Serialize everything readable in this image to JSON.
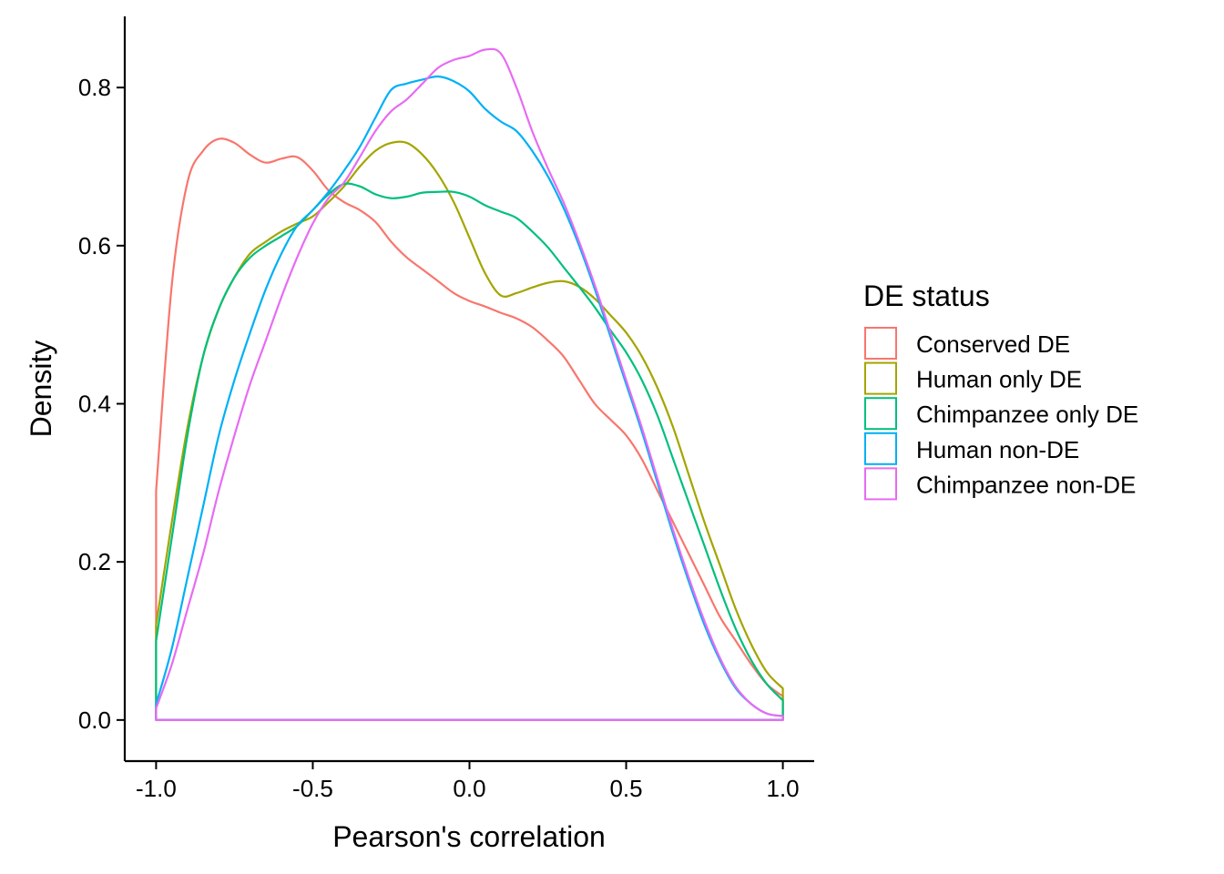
{
  "chart_data": {
    "type": "area",
    "xlabel": "Pearson's correlation",
    "ylabel": "Density",
    "xlim": [
      -1.1,
      1.1
    ],
    "ylim": [
      -0.052,
      0.89
    ],
    "x_ticks": [
      -1.0,
      -0.5,
      0.0,
      0.5,
      1.0
    ],
    "x_tick_labels": [
      "-1.0",
      "-0.5",
      "0.0",
      "0.5",
      "1.0"
    ],
    "y_ticks": [
      0.0,
      0.2,
      0.4,
      0.6,
      0.8
    ],
    "y_tick_labels": [
      "0.0",
      "0.2",
      "0.4",
      "0.6",
      "0.8"
    ],
    "grid": false,
    "legend": {
      "title": "DE status",
      "position": "right"
    },
    "series": [
      {
        "name": "Conserved DE",
        "color": "#F8766D",
        "x": [
          -1.0,
          -0.95,
          -0.9,
          -0.85,
          -0.8,
          -0.75,
          -0.7,
          -0.65,
          -0.6,
          -0.55,
          -0.5,
          -0.45,
          -0.4,
          -0.35,
          -0.3,
          -0.25,
          -0.2,
          -0.15,
          -0.1,
          -0.05,
          0.0,
          0.05,
          0.1,
          0.15,
          0.2,
          0.25,
          0.3,
          0.35,
          0.4,
          0.45,
          0.5,
          0.55,
          0.6,
          0.65,
          0.7,
          0.75,
          0.8,
          0.85,
          0.9,
          0.95,
          1.0
        ],
        "y": [
          0.29,
          0.55,
          0.68,
          0.72,
          0.735,
          0.73,
          0.715,
          0.705,
          0.71,
          0.712,
          0.695,
          0.67,
          0.655,
          0.645,
          0.63,
          0.605,
          0.585,
          0.57,
          0.555,
          0.54,
          0.53,
          0.523,
          0.515,
          0.508,
          0.497,
          0.48,
          0.46,
          0.43,
          0.4,
          0.38,
          0.36,
          0.33,
          0.29,
          0.25,
          0.21,
          0.17,
          0.13,
          0.1,
          0.07,
          0.045,
          0.03
        ]
      },
      {
        "name": "Human only DE",
        "color": "#A3A500",
        "x": [
          -1.0,
          -0.95,
          -0.9,
          -0.85,
          -0.8,
          -0.75,
          -0.7,
          -0.65,
          -0.6,
          -0.55,
          -0.5,
          -0.45,
          -0.4,
          -0.35,
          -0.3,
          -0.25,
          -0.2,
          -0.15,
          -0.1,
          -0.05,
          0.0,
          0.05,
          0.1,
          0.15,
          0.2,
          0.25,
          0.3,
          0.35,
          0.4,
          0.45,
          0.5,
          0.55,
          0.6,
          0.65,
          0.7,
          0.75,
          0.8,
          0.85,
          0.9,
          0.95,
          1.0
        ],
        "y": [
          0.12,
          0.25,
          0.37,
          0.46,
          0.52,
          0.56,
          0.59,
          0.605,
          0.618,
          0.628,
          0.637,
          0.655,
          0.675,
          0.7,
          0.72,
          0.73,
          0.73,
          0.715,
          0.69,
          0.655,
          0.61,
          0.565,
          0.537,
          0.54,
          0.547,
          0.553,
          0.555,
          0.548,
          0.533,
          0.512,
          0.49,
          0.46,
          0.42,
          0.37,
          0.31,
          0.25,
          0.195,
          0.14,
          0.095,
          0.06,
          0.04
        ]
      },
      {
        "name": "Chimpanzee only DE",
        "color": "#00BF7D",
        "x": [
          -1.0,
          -0.95,
          -0.9,
          -0.85,
          -0.8,
          -0.75,
          -0.7,
          -0.65,
          -0.6,
          -0.55,
          -0.5,
          -0.45,
          -0.4,
          -0.35,
          -0.3,
          -0.25,
          -0.2,
          -0.15,
          -0.1,
          -0.05,
          0.0,
          0.05,
          0.1,
          0.15,
          0.2,
          0.25,
          0.3,
          0.35,
          0.4,
          0.45,
          0.5,
          0.55,
          0.6,
          0.65,
          0.7,
          0.75,
          0.8,
          0.85,
          0.9,
          0.95,
          1.0
        ],
        "y": [
          0.1,
          0.23,
          0.36,
          0.46,
          0.52,
          0.56,
          0.585,
          0.6,
          0.612,
          0.625,
          0.645,
          0.665,
          0.678,
          0.675,
          0.665,
          0.66,
          0.662,
          0.667,
          0.668,
          0.668,
          0.662,
          0.651,
          0.643,
          0.635,
          0.618,
          0.598,
          0.573,
          0.548,
          0.522,
          0.493,
          0.465,
          0.43,
          0.385,
          0.33,
          0.275,
          0.22,
          0.165,
          0.115,
          0.075,
          0.045,
          0.025
        ]
      },
      {
        "name": "Human non-DE",
        "color": "#00B0F6",
        "x": [
          -1.0,
          -0.95,
          -0.9,
          -0.85,
          -0.8,
          -0.75,
          -0.7,
          -0.65,
          -0.6,
          -0.55,
          -0.5,
          -0.45,
          -0.4,
          -0.35,
          -0.3,
          -0.25,
          -0.2,
          -0.15,
          -0.1,
          -0.05,
          0.0,
          0.05,
          0.1,
          0.15,
          0.2,
          0.25,
          0.3,
          0.35,
          0.4,
          0.45,
          0.5,
          0.55,
          0.6,
          0.65,
          0.7,
          0.75,
          0.8,
          0.85,
          0.9,
          0.95,
          1.0
        ],
        "y": [
          0.02,
          0.09,
          0.18,
          0.27,
          0.36,
          0.43,
          0.49,
          0.545,
          0.59,
          0.625,
          0.645,
          0.668,
          0.695,
          0.725,
          0.762,
          0.797,
          0.805,
          0.81,
          0.814,
          0.808,
          0.795,
          0.773,
          0.757,
          0.745,
          0.72,
          0.688,
          0.648,
          0.6,
          0.545,
          0.485,
          0.425,
          0.365,
          0.3,
          0.235,
          0.175,
          0.12,
          0.075,
          0.04,
          0.02,
          0.008,
          0.005
        ]
      },
      {
        "name": "Chimpanzee non-DE",
        "color": "#E76BF3",
        "x": [
          -1.0,
          -0.95,
          -0.9,
          -0.85,
          -0.8,
          -0.75,
          -0.7,
          -0.65,
          -0.6,
          -0.55,
          -0.5,
          -0.45,
          -0.4,
          -0.35,
          -0.3,
          -0.25,
          -0.2,
          -0.15,
          -0.1,
          -0.05,
          0.0,
          0.05,
          0.1,
          0.15,
          0.2,
          0.25,
          0.3,
          0.35,
          0.4,
          0.45,
          0.5,
          0.55,
          0.6,
          0.65,
          0.7,
          0.75,
          0.8,
          0.85,
          0.9,
          0.95,
          1.0
        ],
        "y": [
          0.015,
          0.07,
          0.14,
          0.21,
          0.29,
          0.36,
          0.425,
          0.48,
          0.535,
          0.585,
          0.628,
          0.66,
          0.68,
          0.712,
          0.745,
          0.77,
          0.785,
          0.805,
          0.825,
          0.835,
          0.84,
          0.848,
          0.843,
          0.8,
          0.745,
          0.698,
          0.655,
          0.605,
          0.55,
          0.49,
          0.43,
          0.37,
          0.305,
          0.24,
          0.18,
          0.125,
          0.078,
          0.042,
          0.02,
          0.008,
          0.005
        ]
      }
    ]
  }
}
